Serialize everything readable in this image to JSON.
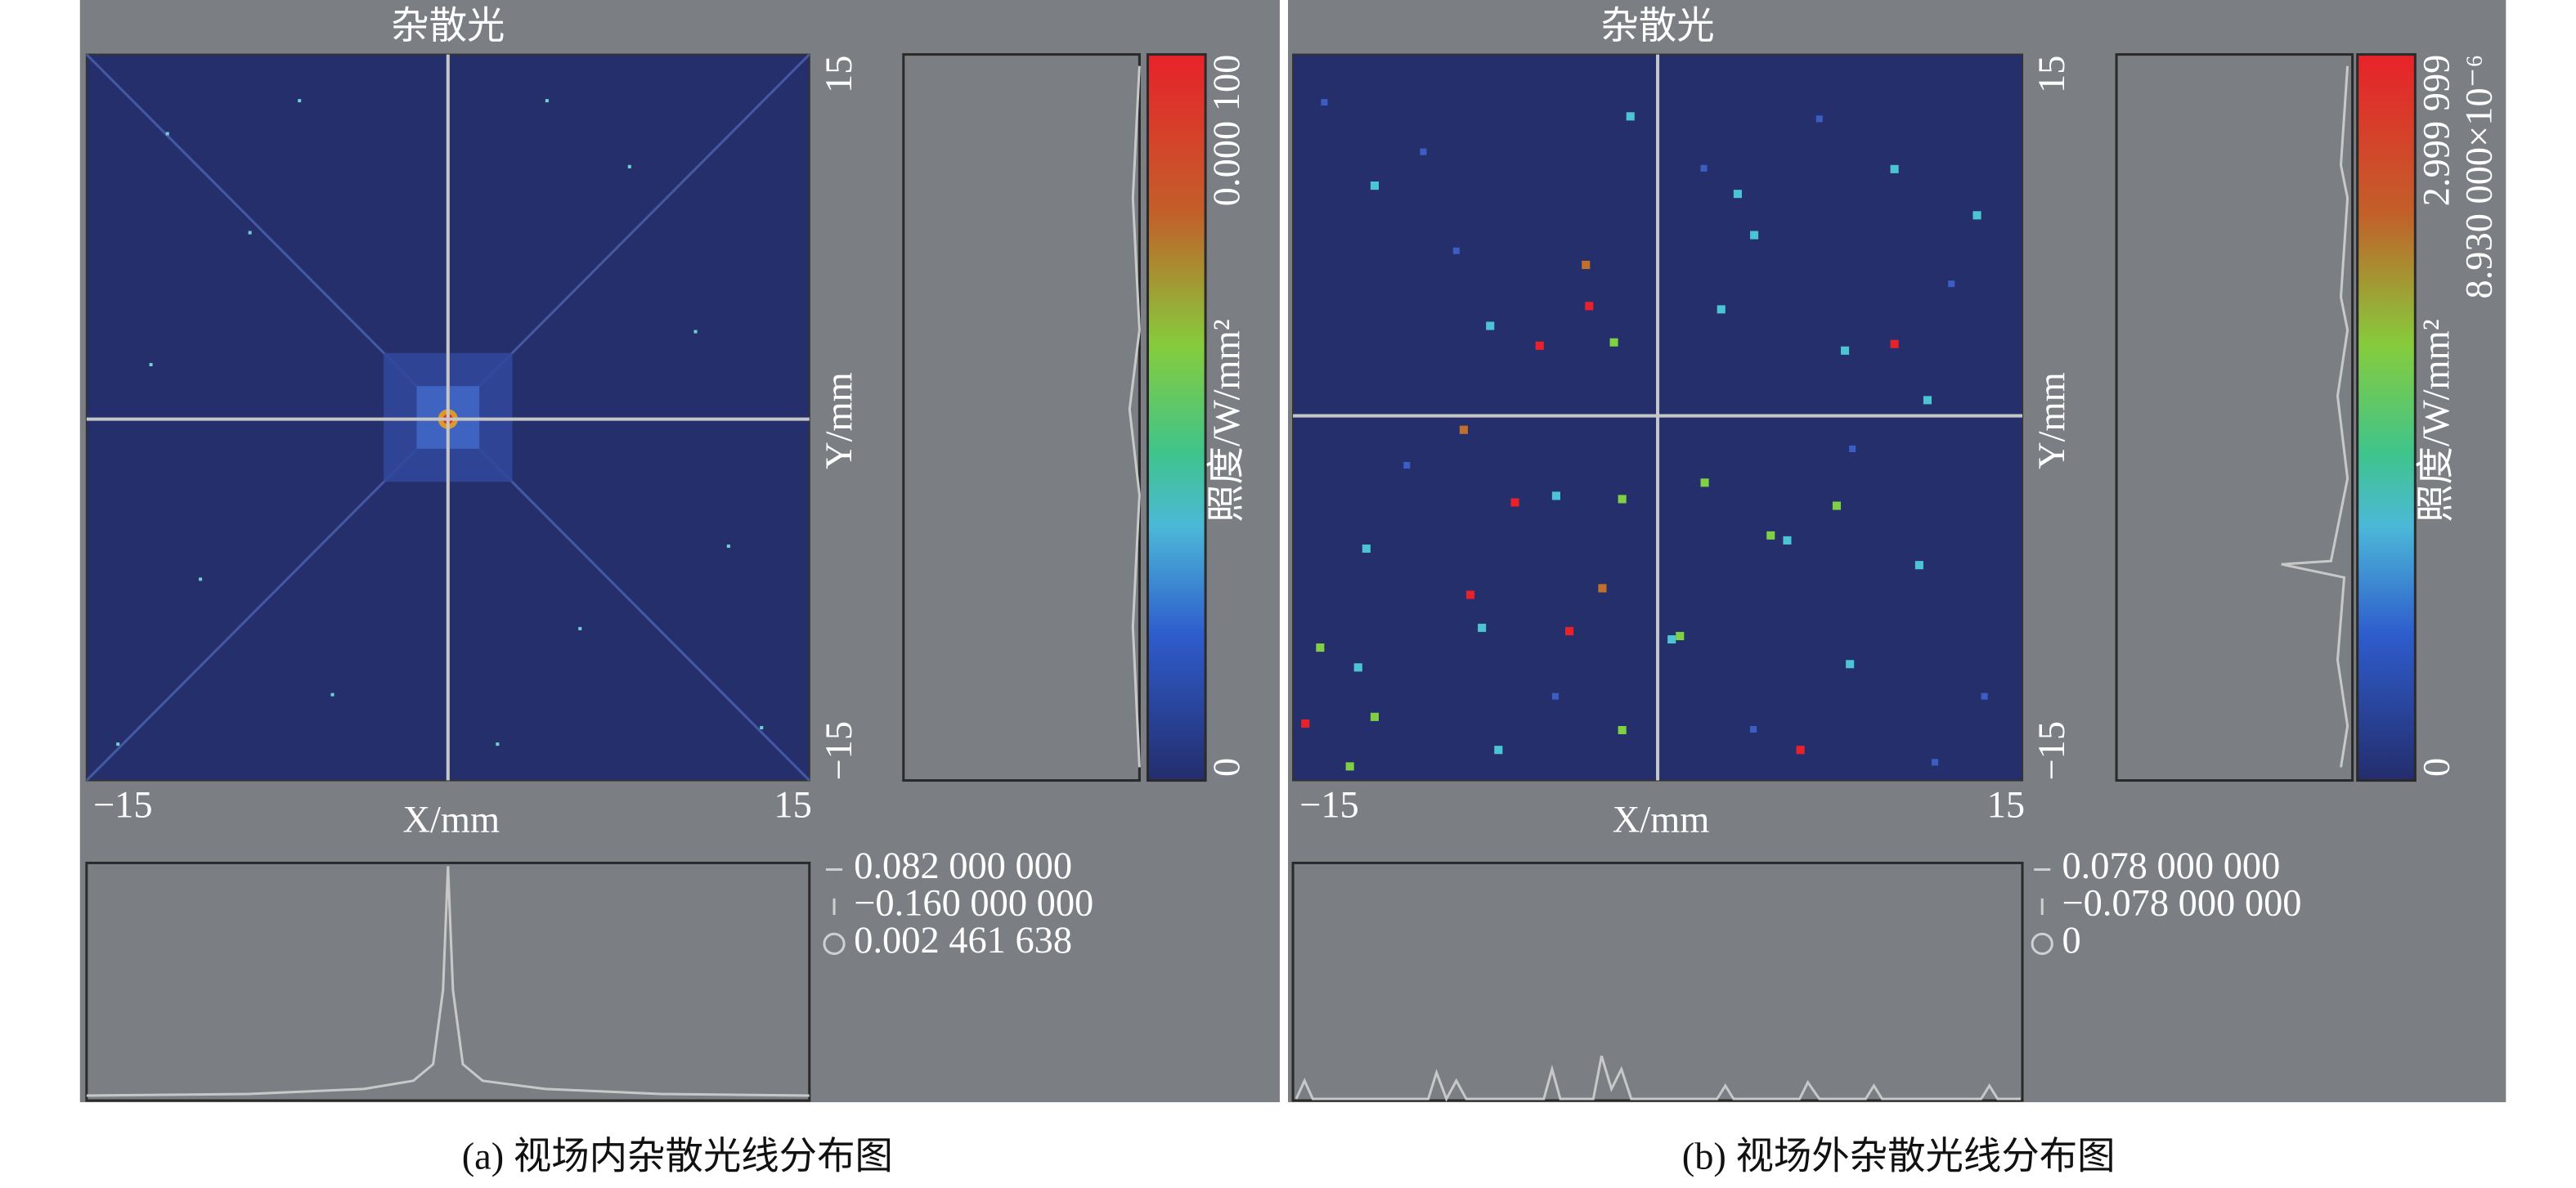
{
  "panels": [
    {
      "title": "杂散光",
      "x_label": "X/mm",
      "y_label": "Y/mm",
      "x_min": "−15",
      "x_max": "15",
      "y_max": "15",
      "y_min": "−15",
      "colorbar": {
        "max_label": [
          "0.000 100"
        ],
        "min_label": "0",
        "title": "照度/W/mm²"
      },
      "readouts": [
        "0.082 000 000",
        "−0.160 000 000",
        "0.002 461 638"
      ],
      "caption": "(a) 视场内杂散光线分布图"
    },
    {
      "title": "杂散光",
      "x_label": "X/mm",
      "y_label": "Y/mm",
      "x_min": "−15",
      "x_max": "15",
      "y_max": "15",
      "y_min": "−15",
      "colorbar": {
        "max_label": [
          "2.999 999",
          "8.930 000×10⁻⁶"
        ],
        "min_label": "0",
        "title": "照度/W/mm²"
      },
      "readouts": [
        "0.078 000 000",
        "−0.078 000 000",
        "0"
      ],
      "caption": "(b) 视场外杂散光线分布图"
    }
  ]
}
